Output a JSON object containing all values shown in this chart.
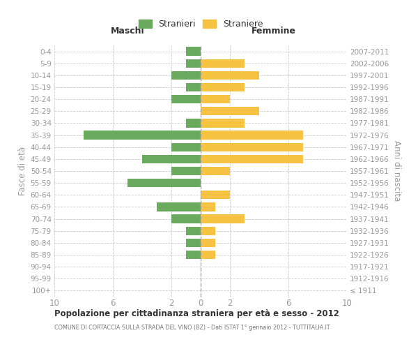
{
  "age_groups": [
    "100+",
    "95-99",
    "90-94",
    "85-89",
    "80-84",
    "75-79",
    "70-74",
    "65-69",
    "60-64",
    "55-59",
    "50-54",
    "45-49",
    "40-44",
    "35-39",
    "30-34",
    "25-29",
    "20-24",
    "15-19",
    "10-14",
    "5-9",
    "0-4"
  ],
  "birth_years": [
    "≤ 1911",
    "1912-1916",
    "1917-1921",
    "1922-1926",
    "1927-1931",
    "1932-1936",
    "1937-1941",
    "1942-1946",
    "1947-1951",
    "1952-1956",
    "1957-1961",
    "1962-1966",
    "1967-1971",
    "1972-1976",
    "1977-1981",
    "1982-1986",
    "1987-1991",
    "1992-1996",
    "1997-2001",
    "2002-2006",
    "2007-2011"
  ],
  "maschi": [
    0,
    0,
    0,
    1,
    1,
    1,
    2,
    3,
    0,
    5,
    2,
    4,
    2,
    8,
    1,
    0,
    2,
    1,
    2,
    1,
    1
  ],
  "femmine": [
    0,
    0,
    0,
    1,
    1,
    1,
    3,
    1,
    2,
    0,
    2,
    7,
    7,
    7,
    3,
    4,
    2,
    3,
    4,
    3,
    0
  ],
  "color_maschi": "#6aaa5e",
  "color_femmine": "#f5c242",
  "color_grid": "#cccccc",
  "color_axis_label": "#999999",
  "color_right_label": "#aaaaaa",
  "color_title": "#333333",
  "color_subtitle": "#777777",
  "color_dashed": "#aaaaaa",
  "title": "Popolazione per cittadinanza straniera per età e sesso - 2012",
  "subtitle": "COMUNE DI CORTACCIA SULLA STRADA DEL VINO (BZ) - Dati ISTAT 1° gennaio 2012 - TUTTITALIA.IT",
  "ylabel_left": "Fasce di età",
  "ylabel_right": "Anni di nascita",
  "xlabel_maschi": "Maschi",
  "xlabel_femmine": "Femmine",
  "legend_maschi": "Stranieri",
  "legend_femmine": "Straniere",
  "xlim": 10,
  "bar_height": 0.72
}
